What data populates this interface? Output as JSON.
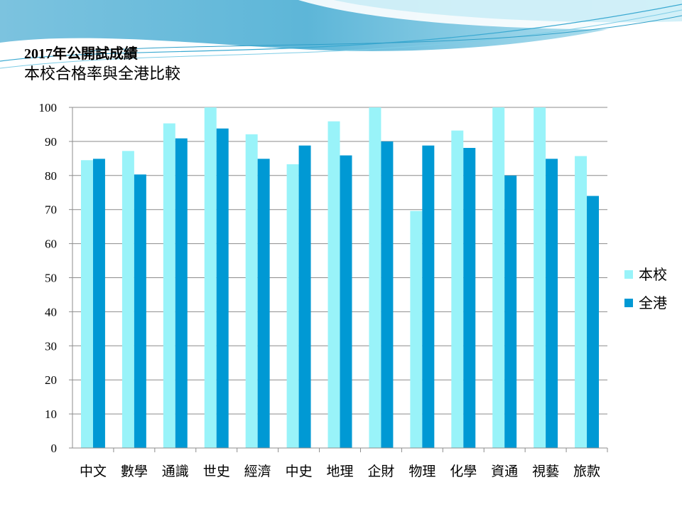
{
  "slide": {
    "title_line1": "2017年公開試成績",
    "title_line2": "本校合格率與全港比較"
  },
  "colors": {
    "banner_dark": "#5ab4d6",
    "banner_light": "#a9def0"
  },
  "chart_data": {
    "type": "bar",
    "categories": [
      "中文",
      "數學",
      "通識",
      "世史",
      "經濟",
      "中史",
      "地理",
      "企財",
      "物理",
      "化學",
      "資通",
      "視藝",
      "旅款"
    ],
    "series": [
      {
        "name": "本校",
        "color": "#99f3f9",
        "values": [
          84.5,
          87.2,
          95.3,
          100,
          92.1,
          83.3,
          95.9,
          100,
          69.6,
          93.2,
          100,
          100,
          85.7
        ]
      },
      {
        "name": "全港",
        "color": "#0099d4",
        "values": [
          84.9,
          80.3,
          90.9,
          93.8,
          84.9,
          88.8,
          85.9,
          90,
          88.8,
          88.1,
          80,
          84.9,
          74
        ]
      }
    ],
    "yticks": [
      0,
      10,
      20,
      30,
      40,
      50,
      60,
      70,
      80,
      90,
      100
    ],
    "ylim": [
      0,
      100
    ],
    "grid": true,
    "legend_position": "right"
  }
}
